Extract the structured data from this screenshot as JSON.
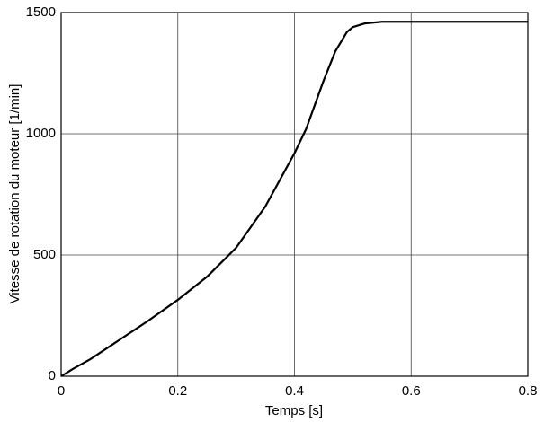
{
  "chart_data": {
    "type": "line",
    "xlabel": "Temps [s]",
    "ylabel": "Vitesse de rotation du moteur [1/min]",
    "x": [
      0,
      0.02,
      0.05,
      0.1,
      0.15,
      0.2,
      0.25,
      0.3,
      0.35,
      0.4,
      0.42,
      0.45,
      0.47,
      0.49,
      0.5,
      0.52,
      0.55,
      0.8
    ],
    "series": [
      {
        "color": "#000000",
        "values": [
          0,
          30,
          70,
          150,
          230,
          315,
          410,
          530,
          700,
          920,
          1020,
          1220,
          1340,
          1420,
          1440,
          1455,
          1462,
          1462
        ]
      }
    ],
    "xlim": [
      0,
      0.8
    ],
    "xticks": [
      0,
      0.2,
      0.4,
      0.6,
      0.8
    ],
    "ylim": [
      0,
      1500
    ],
    "yticks": [
      0,
      500,
      1000,
      1500
    ],
    "grid": true
  }
}
